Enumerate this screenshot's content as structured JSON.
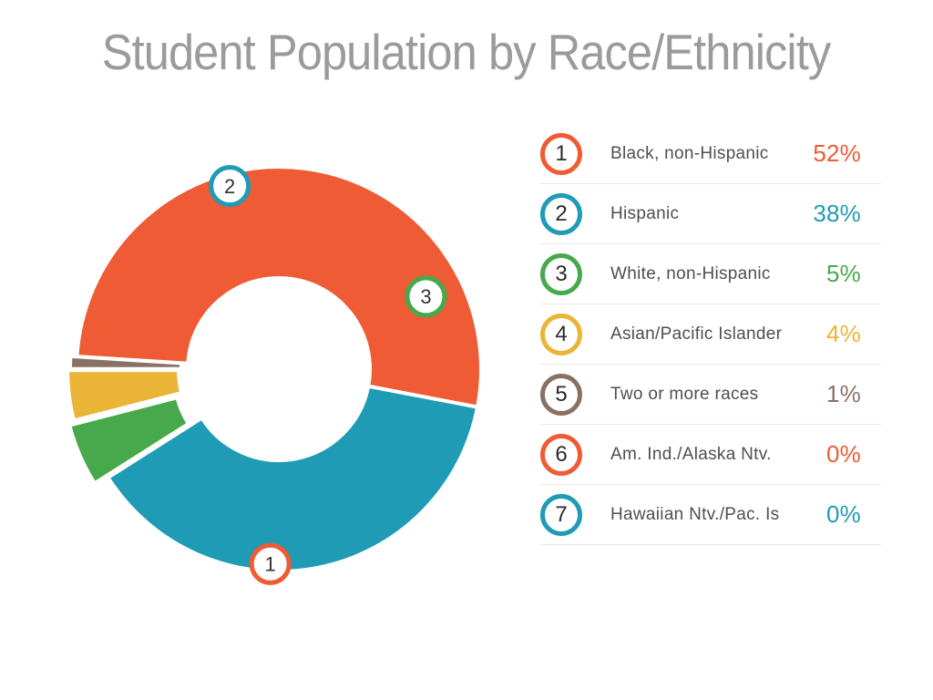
{
  "page": {
    "background": "#FFFFFF"
  },
  "title": "Student Population by Race/Ethnicity",
  "title_color": "#9B9B9B",
  "chart_data": {
    "type": "pie",
    "subtype": "donut",
    "title": "Student Population by Race/Ethnicity",
    "unit": "%",
    "direction": "clockwise",
    "start_angle_deg": 176.4,
    "legend_position": "right",
    "categories": [
      "Black, non-Hispanic",
      "Hispanic",
      "White, non-Hispanic",
      "Asian/Pacific Islander",
      "Two or more races",
      "Am. Ind./Alaska Ntv.",
      "Hawaiian Ntv./Pac. Is"
    ],
    "values": [
      52,
      38,
      5,
      4,
      1,
      0,
      0
    ],
    "value_labels": [
      "52%",
      "38%",
      "5%",
      "4%",
      "1%",
      "0%",
      "0%"
    ],
    "colors": [
      "#EE5B35",
      "#1F9BB5",
      "#48A94C",
      "#EAB437",
      "#8A7164",
      "#EE5B35",
      "#1F9BB5"
    ],
    "slice_numbers": [
      "1",
      "2",
      "3",
      "4",
      "5",
      "6",
      "7"
    ],
    "badges": [
      {
        "label": "1",
        "slice_index": 0
      },
      {
        "label": "2",
        "slice_index": 1
      },
      {
        "label": "3",
        "slice_index": 2
      }
    ]
  },
  "legend": {
    "text_color": "#4F4F4F",
    "number_color": "#2B2B2B",
    "divider_color": "#E9E9E9",
    "rows": [
      {
        "number": "1",
        "label": "Black, non-Hispanic",
        "value": "52%",
        "color": "#EE5B35"
      },
      {
        "number": "2",
        "label": "Hispanic",
        "value": "38%",
        "color": "#1F9BB5"
      },
      {
        "number": "3",
        "label": "White, non-Hispanic",
        "value": "5%",
        "color": "#48A94C"
      },
      {
        "number": "4",
        "label": "Asian/Pacific Islander",
        "value": "4%",
        "color": "#EAB437"
      },
      {
        "number": "5",
        "label": "Two or more races",
        "value": "1%",
        "color": "#8A7164"
      },
      {
        "number": "6",
        "label": "Am. Ind./Alaska Ntv.",
        "value": "0%",
        "color": "#EE5B35"
      },
      {
        "number": "7",
        "label": "Hawaiian Ntv./Pac. Is",
        "value": "0%",
        "color": "#1F9BB5"
      }
    ]
  }
}
